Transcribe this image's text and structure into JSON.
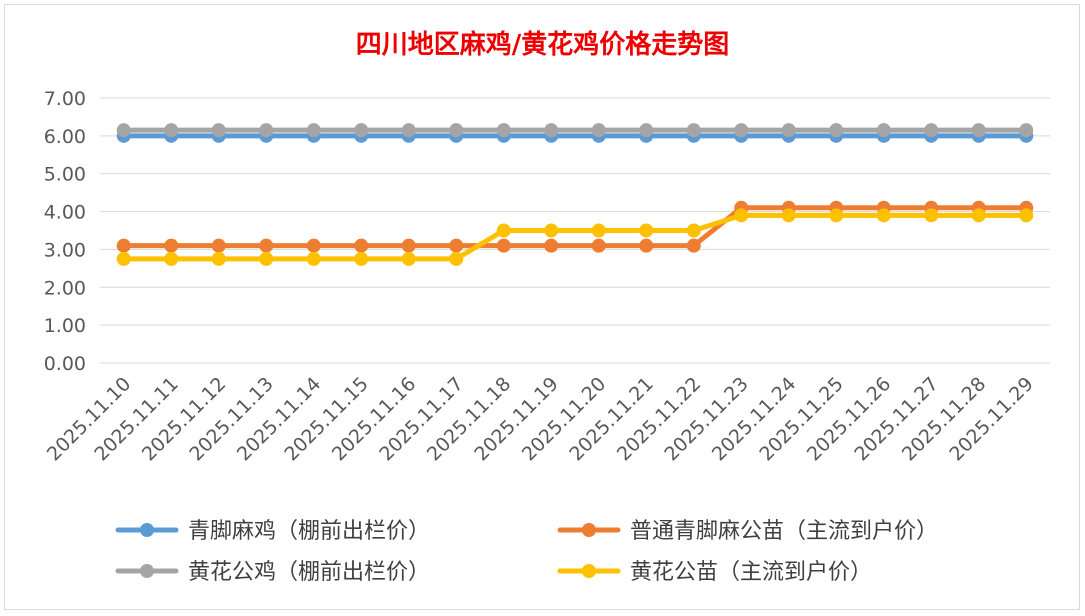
{
  "chart_data": {
    "type": "line",
    "title": "四川地区麻鸡/黄花鸡价格走势图",
    "xlabel": "",
    "ylabel": "",
    "ylim": [
      0,
      7
    ],
    "yticks": [
      "0.00",
      "1.00",
      "2.00",
      "3.00",
      "4.00",
      "5.00",
      "6.00",
      "7.00"
    ],
    "grid": true,
    "legend_position": "bottom",
    "categories": [
      "2025.11.10",
      "2025.11.11",
      "2025.11.12",
      "2025.11.13",
      "2025.11.14",
      "2025.11.15",
      "2025.11.16",
      "2025.11.17",
      "2025.11.18",
      "2025.11.19",
      "2025.11.20",
      "2025.11.21",
      "2025.11.22",
      "2025.11.23",
      "2025.11.24",
      "2025.11.25",
      "2025.11.26",
      "2025.11.27",
      "2025.11.28",
      "2025.11.29"
    ],
    "series": [
      {
        "name": "青脚麻鸡（棚前出栏价）",
        "color": "#5b9bd5",
        "values": [
          6.0,
          6.0,
          6.0,
          6.0,
          6.0,
          6.0,
          6.0,
          6.0,
          6.0,
          6.0,
          6.0,
          6.0,
          6.0,
          6.0,
          6.0,
          6.0,
          6.0,
          6.0,
          6.0,
          6.0
        ]
      },
      {
        "name": "普通青脚麻公苗（主流到户价）",
        "color": "#ed7d31",
        "values": [
          3.1,
          3.1,
          3.1,
          3.1,
          3.1,
          3.1,
          3.1,
          3.1,
          3.1,
          3.1,
          3.1,
          3.1,
          3.1,
          4.1,
          4.1,
          4.1,
          4.1,
          4.1,
          4.1,
          4.1
        ]
      },
      {
        "name": "黄花公鸡（棚前出栏价）",
        "color": "#a5a5a5",
        "values": [
          6.15,
          6.15,
          6.15,
          6.15,
          6.15,
          6.15,
          6.15,
          6.15,
          6.15,
          6.15,
          6.15,
          6.15,
          6.15,
          6.15,
          6.15,
          6.15,
          6.15,
          6.15,
          6.15,
          6.15
        ]
      },
      {
        "name": "黄花公苗（主流到户价）",
        "color": "#ffc000",
        "values": [
          2.75,
          2.75,
          2.75,
          2.75,
          2.75,
          2.75,
          2.75,
          2.75,
          3.5,
          3.5,
          3.5,
          3.5,
          3.5,
          3.9,
          3.9,
          3.9,
          3.9,
          3.9,
          3.9,
          3.9
        ]
      }
    ],
    "draw_order": [
      0,
      1,
      2,
      3
    ]
  }
}
